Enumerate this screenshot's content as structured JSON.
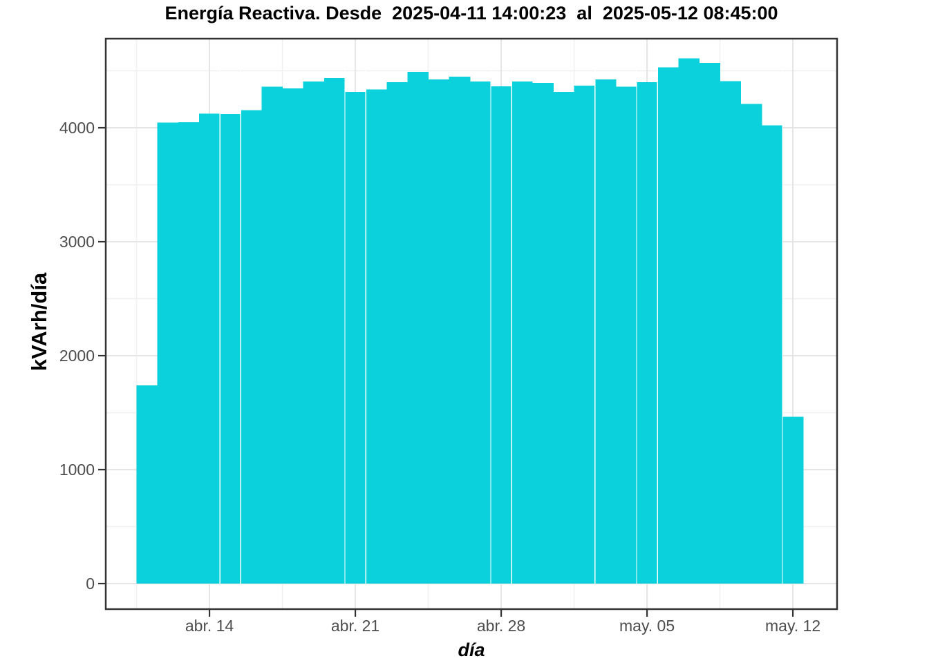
{
  "header": {
    "title": "Energía Reactiva. Desde  2025-04-11 14:00:23  al  2025-05-12 08:45:00"
  },
  "colors": {
    "bar_fill": "#0BD1DC",
    "axis_text": "#4D4D4D",
    "panel_border": "#333333",
    "tick_mark": "#333333",
    "grid_major": "#E5E5E5",
    "grid_minor": "#F0F0F0",
    "background": "#FFFFFF",
    "seam": "#FFFFFF"
  },
  "chart_data": {
    "type": "bar",
    "title": "Energía Reactiva. Desde  2025-04-11 14:00:23  al  2025-05-12 08:45:00",
    "xlabel": "día",
    "ylabel": "kVArh/día",
    "categories": [
      "2025-04-11",
      "2025-04-12",
      "2025-04-13",
      "2025-04-14",
      "2025-04-15",
      "2025-04-16",
      "2025-04-17",
      "2025-04-18",
      "2025-04-19",
      "2025-04-20",
      "2025-04-21",
      "2025-04-22",
      "2025-04-23",
      "2025-04-24",
      "2025-04-25",
      "2025-04-26",
      "2025-04-27",
      "2025-04-28",
      "2025-04-29",
      "2025-04-30",
      "2025-05-01",
      "2025-05-02",
      "2025-05-03",
      "2025-05-04",
      "2025-05-05",
      "2025-05-06",
      "2025-05-07",
      "2025-05-08",
      "2025-05-09",
      "2025-05-10",
      "2025-05-11",
      "2025-05-12"
    ],
    "values": [
      1740,
      4045,
      4050,
      4125,
      4120,
      4155,
      4360,
      4345,
      4405,
      4435,
      4315,
      4335,
      4400,
      4490,
      4425,
      4450,
      4405,
      4365,
      4405,
      4395,
      4315,
      4370,
      4425,
      4360,
      4400,
      4530,
      4610,
      4570,
      4410,
      4210,
      4020,
      1465
    ],
    "x_tick_labels": [
      "abr. 14",
      "abr. 21",
      "abr. 28",
      "may. 05",
      "may. 12"
    ],
    "x_tick_category_index": [
      3,
      10,
      17,
      24,
      31
    ],
    "y_tick_labels": [
      "0",
      "1000",
      "2000",
      "3000",
      "4000"
    ],
    "y_ticks": [
      0,
      1000,
      2000,
      3000,
      4000
    ],
    "y_minor_ticks": [
      500,
      1500,
      2500,
      3500,
      4500
    ],
    "ylim": [
      0,
      4840
    ],
    "grid": "major+minor, light gray on white panel",
    "legend": false,
    "bar_color_name": "turquoise/cyan",
    "white_seams_after_index": [
      3,
      4,
      9,
      10,
      16,
      17,
      21,
      23,
      24,
      30
    ],
    "notes": "Daily reactive energy in kVArh per day; first and last bars are partial days"
  }
}
